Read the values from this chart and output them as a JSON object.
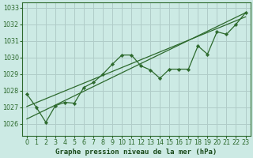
{
  "title": "Graphe pression niveau de la mer (hPa)",
  "background_color": "#cceae4",
  "grid_color": "#b0ccc8",
  "line_color": "#2d6a2d",
  "xlim": [
    -0.5,
    23.5
  ],
  "ylim": [
    1025.3,
    1033.3
  ],
  "yticks": [
    1026,
    1027,
    1028,
    1029,
    1030,
    1031,
    1032,
    1033
  ],
  "xticks": [
    0,
    1,
    2,
    3,
    4,
    5,
    6,
    7,
    8,
    9,
    10,
    11,
    12,
    13,
    14,
    15,
    16,
    17,
    18,
    19,
    20,
    21,
    22,
    23
  ],
  "series_zigzag": [
    1027.8,
    1027.0,
    1026.1,
    1027.1,
    1027.3,
    1027.25,
    1028.2,
    1028.5,
    1029.0,
    1029.6,
    1030.15,
    1030.15,
    1029.5,
    1029.25,
    1028.75,
    1029.3,
    1029.3,
    1029.3,
    1030.7,
    1030.2,
    1031.55,
    1031.4,
    1032.0,
    1032.7
  ],
  "trend1_x": [
    0,
    23
  ],
  "trend1_y": [
    1026.3,
    1032.7
  ],
  "trend2_x": [
    0,
    23
  ],
  "trend2_y": [
    1027.05,
    1032.45
  ],
  "xlabel_fontsize": 6.5,
  "ylabel_fontsize": 6,
  "tick_fontsize": 5.8
}
